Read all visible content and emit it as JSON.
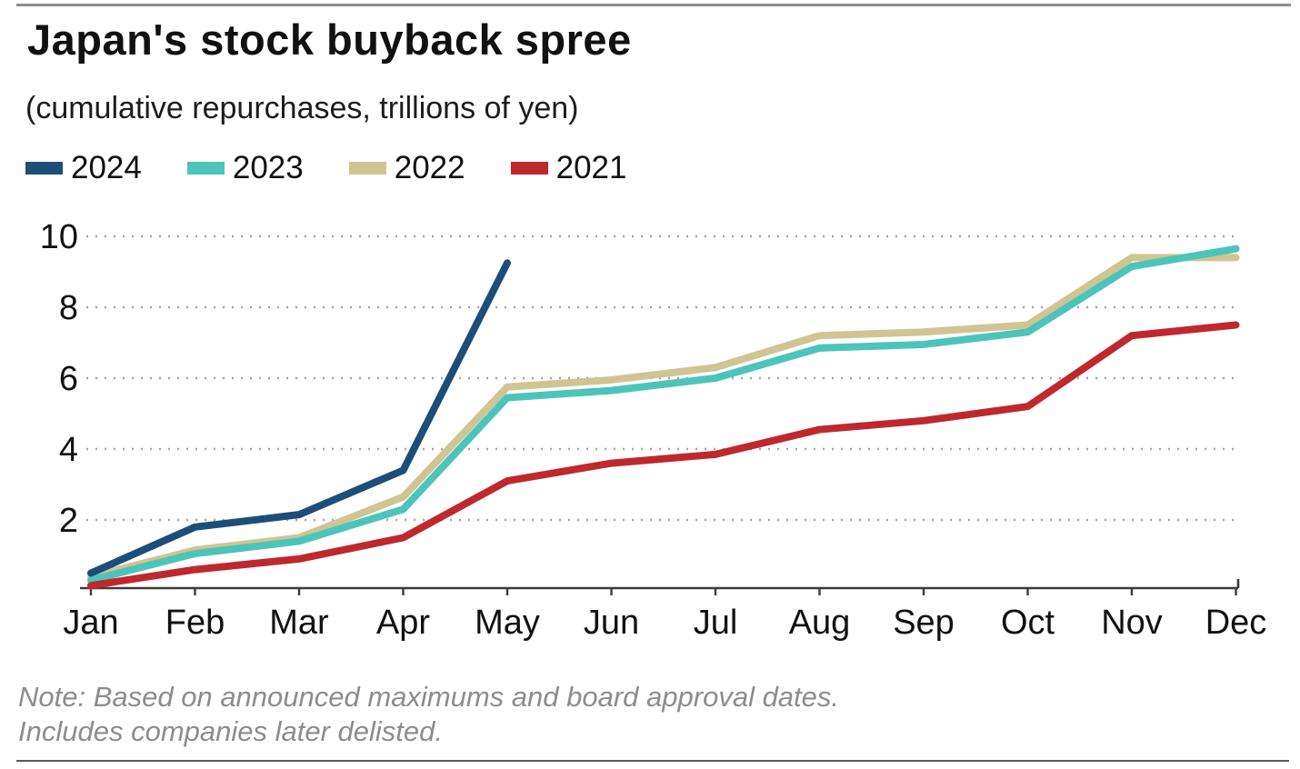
{
  "header": {
    "title": "Japan's stock buyback spree",
    "subtitle": "(cumulative repurchases, trillions of yen)"
  },
  "note": {
    "line1": "Note: Based on announced maximums and board approval dates.",
    "line2": "Includes companies later delisted."
  },
  "colors": {
    "grid": "#a5a5a5",
    "axis": "#3c3c3c",
    "tick_label": "#111111"
  },
  "chart_data": {
    "type": "line",
    "categories": [
      "Jan",
      "Feb",
      "Mar",
      "Apr",
      "May",
      "Jun",
      "Jul",
      "Aug",
      "Sep",
      "Oct",
      "Nov",
      "Dec"
    ],
    "yticks": [
      2,
      4,
      6,
      8,
      10
    ],
    "ylim": [
      0,
      10.5
    ],
    "grid": "dotted-horizontal",
    "legend_position": "top-left",
    "series": [
      {
        "name": "2024",
        "color": "#1d4e79",
        "values": [
          0.5,
          1.8,
          2.15,
          3.4,
          9.25,
          null,
          null,
          null,
          null,
          null,
          null,
          null
        ]
      },
      {
        "name": "2023",
        "color": "#4cc4b9",
        "values": [
          0.3,
          1.05,
          1.4,
          2.3,
          5.45,
          5.65,
          6.0,
          6.85,
          6.95,
          7.3,
          9.15,
          9.65
        ]
      },
      {
        "name": "2022",
        "color": "#cfc492",
        "values": [
          0.4,
          1.15,
          1.5,
          2.65,
          5.75,
          5.95,
          6.3,
          7.2,
          7.3,
          7.5,
          9.4,
          9.4
        ]
      },
      {
        "name": "2021",
        "color": "#bf282c",
        "values": [
          0.15,
          0.6,
          0.9,
          1.5,
          3.1,
          3.6,
          3.85,
          4.55,
          4.8,
          5.2,
          7.2,
          7.5
        ]
      }
    ]
  }
}
